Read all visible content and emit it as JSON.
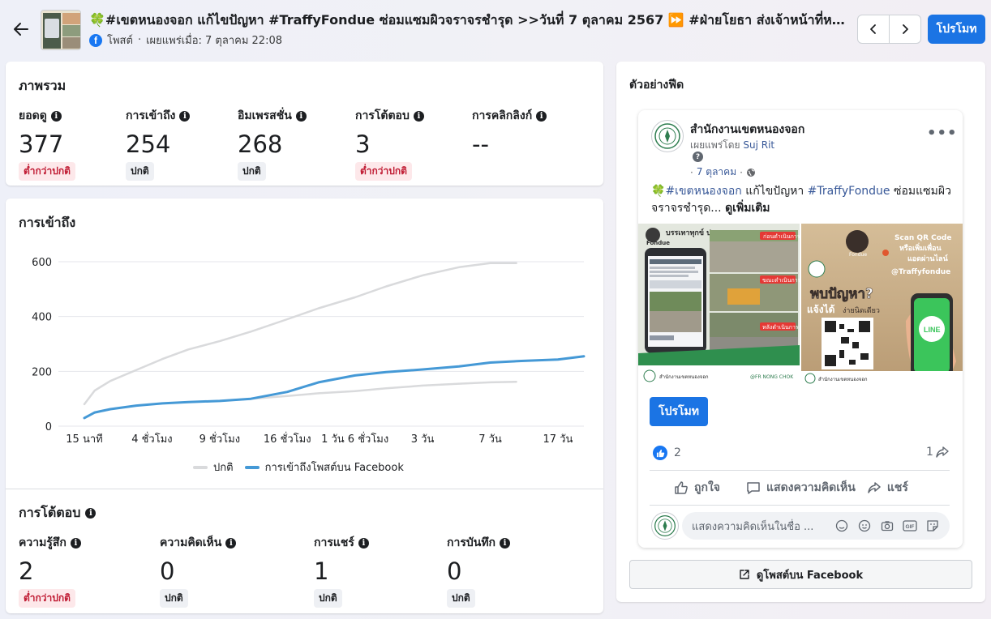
{
  "header": {
    "back_label": "←",
    "post_title": "🍀#เขตหนองจอก แก้ไขปัญหา #TraffyFondue ซ่อมแซมผิวจราจรชำรุด >>วันที่ 7 ตุลาคม 2567 ⏩ #ฝ่ายโยธา ส่งเจ้าหน้าที่หน่วยงานโ...",
    "post_type": "โพสต์",
    "published": "เผยแพร่เมื่อ: 7 ตุลาคม 22:08",
    "promote_label": "โปรโมท"
  },
  "overview": {
    "title": "ภาพรวม",
    "metrics": [
      {
        "label": "ยอดดู",
        "value": "377",
        "status": "ต่ำกว่าปกติ",
        "status_type": "low"
      },
      {
        "label": "การเข้าถึง",
        "value": "254",
        "status": "ปกติ",
        "status_type": "normal"
      },
      {
        "label": "อิมเพรสชั่น",
        "value": "268",
        "status": "ปกติ",
        "status_type": "normal"
      },
      {
        "label": "การโต้ตอบ",
        "value": "3",
        "status": "ต่ำกว่าปกติ",
        "status_type": "low"
      },
      {
        "label": "การคลิกลิงก์",
        "value": "--",
        "status": "",
        "status_type": "none"
      }
    ]
  },
  "reach_chart": {
    "title": "การเข้าถึง",
    "legend_normal": "ปกติ",
    "legend_reach": "การเข้าถึงโพสต์บน Facebook"
  },
  "chart_data": {
    "type": "line",
    "title": "การเข้าถึง",
    "x_tick_labels": [
      "15 นาที",
      "4 ชั่วโมง",
      "9 ชั่วโมง",
      "16 ชั่วโมง",
      "1 วัน 6 ชั่วโมง",
      "3 วัน",
      "7 วัน",
      "17 วัน"
    ],
    "x_ticks_at": [
      0,
      13,
      26,
      39,
      52,
      65,
      78,
      91
    ],
    "ylim": [
      0,
      600
    ],
    "y_ticks": [
      0,
      200,
      400,
      600
    ],
    "grid": true,
    "legend_position": "bottom",
    "series": [
      {
        "name": "ปกติ",
        "color": "#d9dadc",
        "x": [
          0,
          2,
          5,
          10,
          15,
          20,
          26,
          32,
          39,
          45,
          52,
          58,
          65,
          72,
          78,
          83
        ],
        "y": [
          80,
          130,
          165,
          205,
          245,
          280,
          310,
          345,
          390,
          430,
          470,
          510,
          550,
          580,
          595,
          595
        ]
      },
      {
        "name": "ปกติ",
        "color": "#d9dadc",
        "x": [
          26,
          32,
          39,
          45,
          52,
          58,
          65,
          72,
          78,
          83
        ],
        "y": [
          92,
          100,
          110,
          120,
          128,
          138,
          148,
          155,
          160,
          162
        ]
      },
      {
        "name": "การเข้าถึงโพสต์บน Facebook",
        "color": "#4599d6",
        "x": [
          0,
          2,
          5,
          10,
          15,
          20,
          26,
          32,
          39,
          45,
          52,
          58,
          65,
          72,
          78,
          84,
          91,
          96
        ],
        "y": [
          30,
          50,
          62,
          75,
          83,
          88,
          92,
          100,
          125,
          160,
          185,
          197,
          207,
          218,
          232,
          238,
          243,
          255
        ]
      }
    ]
  },
  "engagement": {
    "title": "การโต้ตอบ",
    "metrics": [
      {
        "label": "ความรู้สึก",
        "value": "2",
        "status": "ต่ำกว่าปกติ",
        "status_type": "low"
      },
      {
        "label": "ความคิดเห็น",
        "value": "0",
        "status": "ปกติ",
        "status_type": "normal"
      },
      {
        "label": "การแชร์",
        "value": "1",
        "status": "ปกติ",
        "status_type": "normal"
      },
      {
        "label": "การบันทึก",
        "value": "0",
        "status": "ปกติ",
        "status_type": "normal"
      }
    ]
  },
  "preview": {
    "title": "ตัวอย่างฟีด",
    "page_name": "สำนักงานเขตหนองจอก",
    "posted_by_prefix": "เผยแพร่โดย",
    "posted_by_name": "Suj Rit",
    "date": "7 ตุลาคม",
    "text_clover": "🍀",
    "text_hashtag1": "#เขตหนองจอก",
    "text_mid": " แก้ไขปัญหา ",
    "text_hashtag2": "#TraffyFondue",
    "text_rest": " ซ่อมแซมผิวจราจรชำรุด... ",
    "see_more": "ดูเพิ่มเติม",
    "image_left": {
      "badge": "Fondue",
      "headline": "บรรเทาทุกข์ ประชาชน",
      "before": "ก่อนดำเนินการ",
      "during": "ขณะดำเนินการ",
      "after": "หลังดำเนินการ",
      "footer_office": "สำนักงานเขตหนองจอก",
      "footer_handle": "@FR NONG CHOK"
    },
    "image_right": {
      "badge": "Fondue",
      "scan_line1": "Scan QR Code",
      "scan_line2": "หรือเพิ่มเพื่อน",
      "scan_line3": "แอดผ่านไลน์",
      "scan_line4": "@Traffyfondue",
      "headline1": "พบปัญหา?",
      "headline2": "แจ้งได้",
      "headline3": "ง่ายนิดเดียว",
      "line_label": "LINE",
      "footer_office": "สำนักงานเขตหนองจอก"
    },
    "promote_label": "โปรโมท",
    "reactions_count": "2",
    "shares_count": "1",
    "like_label": "ถูกใจ",
    "comment_label": "แสดงความคิดเห็น",
    "share_label": "แชร์",
    "comment_placeholder": "แสดงความคิดเห็นในชื่อ ...",
    "gif_label": "GIF",
    "view_on_fb": "ดูโพสต์บน Facebook"
  }
}
